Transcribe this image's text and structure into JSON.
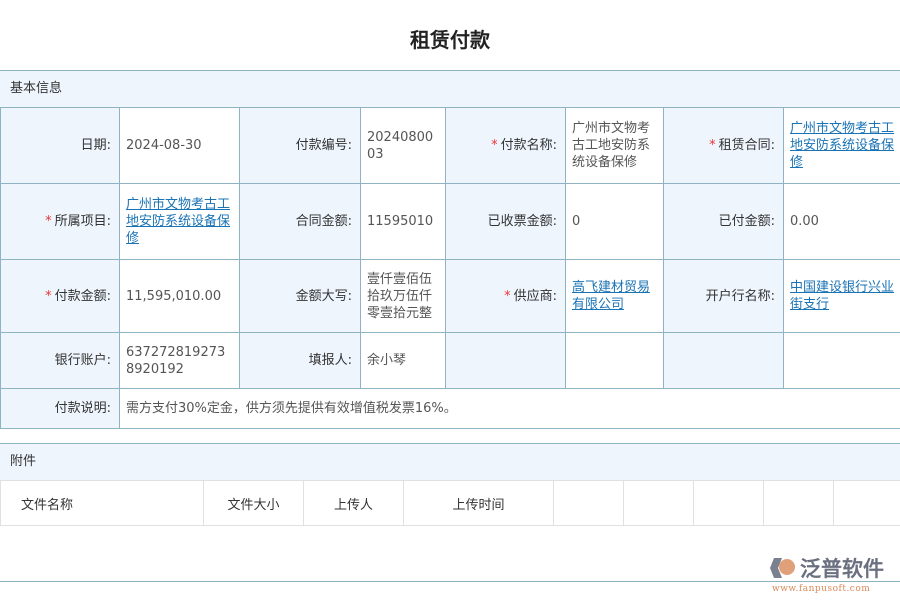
{
  "title": "租赁付款",
  "basic": {
    "header": "基本信息",
    "date_label": "日期:",
    "date": "2024-08-30",
    "pay_no_label": "付款编号:",
    "pay_no": "2024080003",
    "pay_name_label": "付款名称:",
    "pay_name": "广州市文物考古工地安防系统设备保修",
    "contract_label": "租赁合同:",
    "contract": "广州市文物考古工地安防系统设备保修",
    "project_label": "所属项目:",
    "project": "广州市文物考古工地安防系统设备保修",
    "contract_amount_label": "合同金额:",
    "contract_amount": "11595010",
    "invoiced_label": "已收票金额:",
    "invoiced": "0",
    "paid_label": "已付金额:",
    "paid": "0.00",
    "pay_amount_label": "付款金额:",
    "pay_amount": "11,595,010.00",
    "amount_words_label": "金额大写:",
    "amount_words": "壹仟壹佰伍拾玖万伍仟零壹拾元整",
    "supplier_label": "供应商:",
    "supplier": "高飞建材贸易有限公司",
    "bank_label": "开户行名称:",
    "bank": "中国建设银行兴业街支行",
    "account_label": "银行账户:",
    "account": "6372728192738920192",
    "reporter_label": "填报人:",
    "reporter": "余小琴",
    "desc_label": "付款说明:",
    "desc": "需方支付30%定金，供方须先提供有效增值税发票16%。",
    "required_mark": "*"
  },
  "attachments": {
    "header": "附件",
    "columns": [
      "文件名称",
      "文件大小",
      "上传人",
      "上传时间"
    ]
  },
  "watermark": {
    "brand": "泛普软件",
    "url": "www.fanpusoft.com"
  },
  "colors": {
    "link": "#1a73b5",
    "required": "#e33333",
    "label_bg": "#eef5fd",
    "border": "#8fb3c2"
  }
}
